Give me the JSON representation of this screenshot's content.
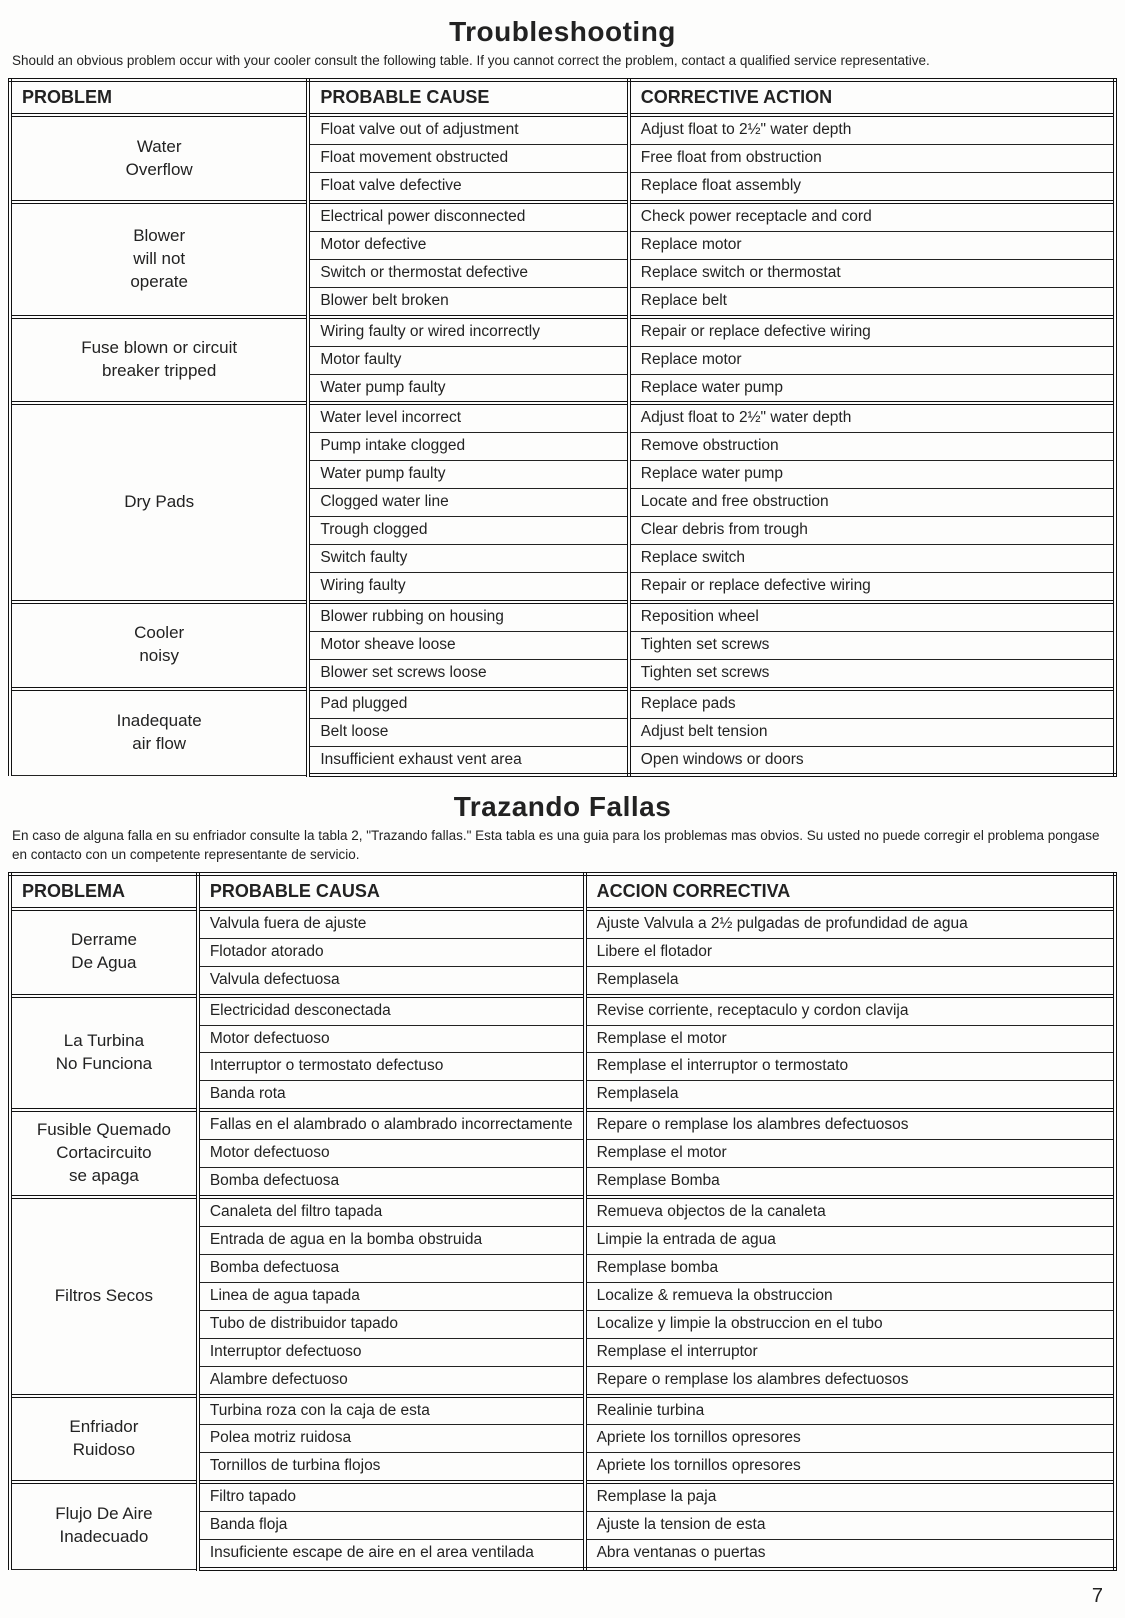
{
  "sections": [
    {
      "title": "Troubleshooting",
      "intro": "Should an obvious problem occur with your cooler consult the following table. If you cannot correct the problem, contact a qualified service representative.",
      "col_widths": [
        "27%",
        "29%",
        "44%"
      ],
      "headers": [
        "PROBLEM",
        "PROBABLE CAUSE",
        "CORRECTIVE ACTION"
      ],
      "groups": [
        {
          "problem": "Water\nOverflow",
          "rows": [
            [
              "Float valve out of adjustment",
              "Adjust float to 2½\" water depth"
            ],
            [
              "Float movement obstructed",
              "Free float from obstruction"
            ],
            [
              "Float valve defective",
              "Replace float assembly"
            ]
          ]
        },
        {
          "problem": "Blower\nwill not\noperate",
          "rows": [
            [
              "Electrical power disconnected",
              "Check power receptacle and cord"
            ],
            [
              "Motor defective",
              "Replace motor"
            ],
            [
              "Switch or thermostat defective",
              "Replace switch or thermostat"
            ],
            [
              "Blower belt broken",
              "Replace belt"
            ]
          ]
        },
        {
          "problem": "Fuse blown or circuit\nbreaker tripped",
          "rows": [
            [
              "Wiring faulty or wired incorrectly",
              "Repair or replace defective wiring"
            ],
            [
              "Motor faulty",
              "Replace motor"
            ],
            [
              "Water pump faulty",
              "Replace water pump"
            ]
          ]
        },
        {
          "problem": "Dry Pads",
          "rows": [
            [
              "Water level incorrect",
              "Adjust float to 2½\" water depth"
            ],
            [
              "Pump intake clogged",
              "Remove obstruction"
            ],
            [
              "Water pump faulty",
              "Replace water pump"
            ],
            [
              "Clogged water line",
              "Locate and free obstruction"
            ],
            [
              "Trough clogged",
              "Clear debris from trough"
            ],
            [
              "Switch faulty",
              "Replace switch"
            ],
            [
              "Wiring faulty",
              "Repair or replace defective wiring"
            ]
          ]
        },
        {
          "problem": "Cooler\nnoisy",
          "rows": [
            [
              "Blower rubbing on housing",
              "Reposition wheel"
            ],
            [
              "Motor sheave loose",
              "Tighten set screws"
            ],
            [
              "Blower set screws loose",
              "Tighten set screws"
            ]
          ]
        },
        {
          "problem": "Inadequate\nair flow",
          "rows": [
            [
              "Pad plugged",
              "Replace pads"
            ],
            [
              "Belt loose",
              "Adjust belt tension"
            ],
            [
              "Insufficient exhaust vent area",
              "Open windows or doors"
            ]
          ]
        }
      ]
    },
    {
      "title": "Trazando Fallas",
      "intro": "En caso de alguna falla en su enfriador consulte la tabla 2, \"Trazando fallas.\" Esta tabla es una guia para los problemas mas obvios. Su usted no puede corregir el problema pongase en contacto con un competente representante de servicio.",
      "col_widths": [
        "17%",
        "35%",
        "48%"
      ],
      "headers": [
        "PROBLEMA",
        "PROBABLE CAUSA",
        "ACCION CORRECTIVA"
      ],
      "groups": [
        {
          "problem": "Derrame\nDe Agua",
          "rows": [
            [
              "Valvula fuera de ajuste",
              "Ajuste Valvula a 2½ pulgadas de profundidad de agua"
            ],
            [
              "Flotador atorado",
              "Libere el flotador"
            ],
            [
              "Valvula defectuosa",
              "Remplasela"
            ]
          ]
        },
        {
          "problem": "La Turbina\nNo Funciona",
          "rows": [
            [
              "Electricidad desconectada",
              "Revise corriente, receptaculo y cordon clavija"
            ],
            [
              "Motor defectuoso",
              "Remplase el motor"
            ],
            [
              "Interruptor o termostato defectuso",
              "Remplase el interruptor o termostato"
            ],
            [
              "Banda rota",
              "Remplasela"
            ]
          ]
        },
        {
          "problem": "Fusible Quemado\nCortacircuito\nse apaga",
          "rows": [
            [
              "Fallas en el alambrado o alambrado incorrectamente",
              "Repare o remplase los alambres defectuosos"
            ],
            [
              "Motor defectuoso",
              "Remplase el motor"
            ],
            [
              "Bomba defectuosa",
              "Remplase Bomba"
            ]
          ]
        },
        {
          "problem": "Filtros Secos",
          "rows": [
            [
              "Canaleta del filtro tapada",
              "Remueva objectos de la canaleta"
            ],
            [
              "Entrada de agua en la bomba obstruida",
              "Limpie la entrada de agua"
            ],
            [
              "Bomba defectuosa",
              "Remplase bomba"
            ],
            [
              "Linea de agua tapada",
              "Localize & remueva la obstruccion"
            ],
            [
              "Tubo de distribuidor tapado",
              "Localize y limpie la obstruccion en el tubo"
            ],
            [
              "Interruptor defectuoso",
              "Remplase el interruptor"
            ],
            [
              "Alambre defectuoso",
              "Repare o remplase los alambres defectuosos"
            ]
          ]
        },
        {
          "problem": "Enfriador\nRuidoso",
          "rows": [
            [
              "Turbina roza con la caja de esta",
              "Realinie turbina"
            ],
            [
              "Polea motriz ruidosa",
              "Apriete los tornillos opresores"
            ],
            [
              "Tornillos de turbina flojos",
              "Apriete los tornillos opresores"
            ]
          ]
        },
        {
          "problem": "Flujo De Aire\nInadecuado",
          "rows": [
            [
              "Filtro tapado",
              "Remplase la paja"
            ],
            [
              "Banda floja",
              "Ajuste la tension de esta"
            ],
            [
              "Insuficiente escape de aire en el area ventilada",
              "Abra ventanas o puertas"
            ]
          ]
        }
      ]
    }
  ],
  "page_number": "7"
}
